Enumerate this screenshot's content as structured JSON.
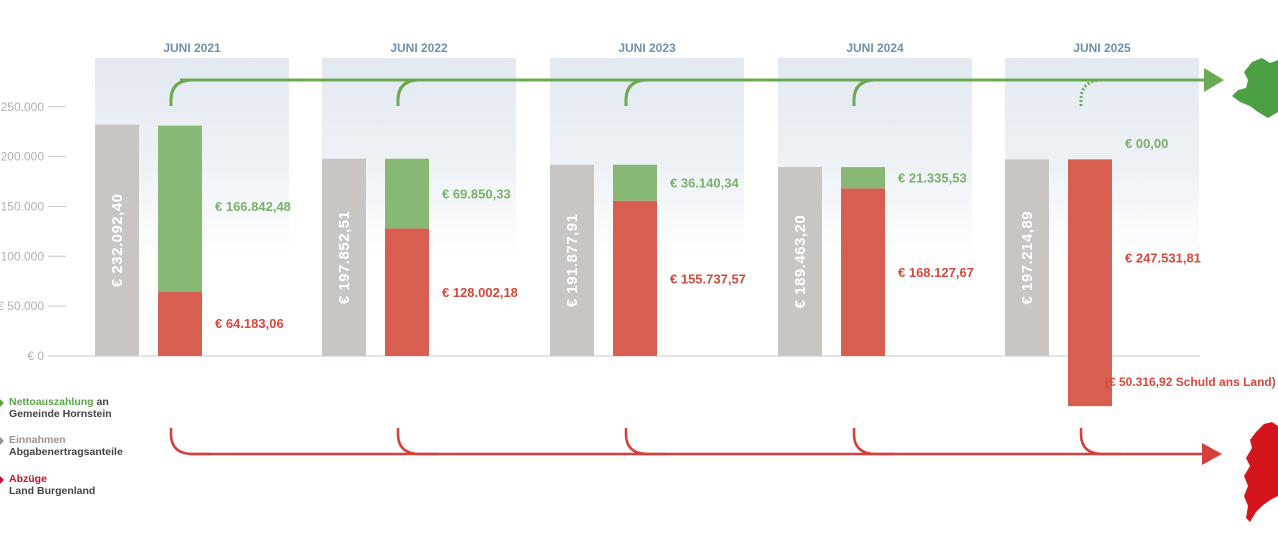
{
  "chart_data": {
    "type": "bar",
    "categories": [
      "JUNI 2021",
      "JUNI 2022",
      "JUNI 2023",
      "JUNI 2024",
      "JUNI 2025"
    ],
    "yticks": [
      {
        "value": 0,
        "label": "€ 0"
      },
      {
        "value": 50000,
        "label": "€ 50.000"
      },
      {
        "value": 100000,
        "label": "100.000"
      },
      {
        "value": 150000,
        "label": "150.000"
      },
      {
        "value": 200000,
        "label": "200.000"
      },
      {
        "value": 250000,
        "label": "250.000"
      }
    ],
    "ylim": [
      -52000,
      282000
    ],
    "series": [
      {
        "name": "Einnahmen Abgabenertragsanteile",
        "color": "#c9c5c2",
        "values": [
          232092.4,
          197852.51,
          191877.91,
          189463.2,
          197214.89
        ],
        "labels": [
          "€ 232.092,40",
          "€ 197.852,51",
          "€ 191.877,91",
          "€ 189.463,20",
          "€ 197.214,89"
        ]
      },
      {
        "name": "Abzüge Land Burgenland",
        "color": "#d85f4f",
        "values": [
          64183.06,
          128002.18,
          155737.57,
          168127.67,
          247531.81
        ],
        "labels": [
          "€ 64.183,06",
          "€ 128.002,18",
          "€ 155.737,57",
          "€ 168.127,67",
          "€ 247.531,81"
        ]
      },
      {
        "name": "Nettoauszahlung an Gemeinde Hornstein",
        "color": "#87b874",
        "values": [
          166842.48,
          69850.33,
          36140.34,
          21335.53,
          0
        ],
        "labels": [
          "€ 166.842,48",
          "€ 69.850,33",
          "€ 36.140,34",
          "€ 21.335,53",
          "€ 00,00"
        ]
      }
    ],
    "annotation": "(€ 50.316,92 Schuld ans Land)",
    "grid": false,
    "legend_position": "bottom-left"
  },
  "legend": {
    "green": {
      "line1": "Nettoauszahlung",
      "line1_rest": " an",
      "line2": "Gemeinde Hornstein"
    },
    "grey": {
      "line1": "Einnahmen",
      "line2": "Abgabenertragsanteile"
    },
    "red": {
      "line1": "Abzüge",
      "line2": "Land Burgenland"
    }
  },
  "colors": {
    "green_flow": "#6aab52",
    "red_flow": "#d33f3a",
    "green_map": "#4aa043",
    "red_map": "#d4161c",
    "year_header": "#6e8fb0"
  },
  "icons": {
    "top_right": "hornstein-map-icon",
    "bottom_right": "burgenland-map-icon"
  }
}
